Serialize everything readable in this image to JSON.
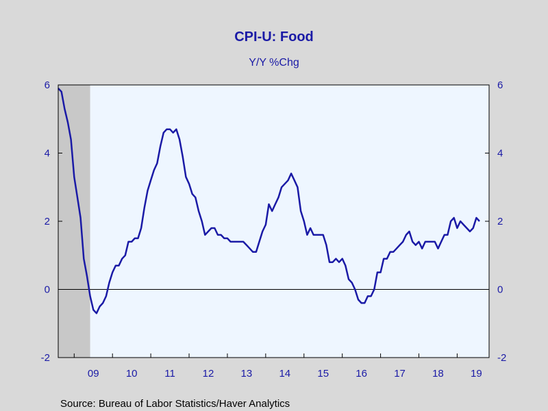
{
  "colors": {
    "background": "#d9d9d9",
    "plot_background": "#eef6ff",
    "recession_shade": "#c8c8c8",
    "series_line": "#1a1aa6",
    "text": "#1a1aa6",
    "zero_line": "#000000"
  },
  "chart_data": {
    "type": "line",
    "title": "CPI-U: Food",
    "subtitle": "Y/Y %Chg",
    "source": "Source:  Bureau of Labor Statistics/Haver Analytics",
    "x_tick_labels": [
      "09",
      "10",
      "11",
      "12",
      "13",
      "14",
      "15",
      "16",
      "17",
      "18",
      "19"
    ],
    "x_start": "2008-08",
    "x_range": [
      "2008-08",
      "2019-11"
    ],
    "ylim": [
      -2,
      6
    ],
    "y_ticks": [
      -2,
      0,
      2,
      4,
      6
    ],
    "recession": {
      "start": "2008-08",
      "end": "2009-06"
    },
    "zero_line": true,
    "grid": false,
    "series": [
      {
        "values": [
          5.9,
          5.8,
          5.3,
          4.9,
          4.4,
          3.3,
          2.7,
          2.1,
          0.9,
          0.4,
          -0.2,
          -0.6,
          -0.7,
          -0.5,
          -0.4,
          -0.2,
          0.2,
          0.5,
          0.7,
          0.7,
          0.9,
          1.0,
          1.4,
          1.4,
          1.5,
          1.5,
          1.8,
          2.4,
          2.9,
          3.2,
          3.5,
          3.7,
          4.2,
          4.6,
          4.7,
          4.7,
          4.6,
          4.7,
          4.4,
          3.9,
          3.3,
          3.1,
          2.8,
          2.7,
          2.3,
          2.0,
          1.6,
          1.7,
          1.8,
          1.8,
          1.6,
          1.6,
          1.5,
          1.5,
          1.4,
          1.4,
          1.4,
          1.4,
          1.4,
          1.3,
          1.2,
          1.1,
          1.1,
          1.4,
          1.7,
          1.9,
          2.5,
          2.3,
          2.5,
          2.7,
          3.0,
          3.1,
          3.2,
          3.4,
          3.2,
          3.0,
          2.3,
          2.0,
          1.6,
          1.8,
          1.6,
          1.6,
          1.6,
          1.6,
          1.3,
          0.8,
          0.8,
          0.9,
          0.8,
          0.9,
          0.7,
          0.3,
          0.2,
          0.0,
          -0.3,
          -0.4,
          -0.4,
          -0.2,
          -0.2,
          0.0,
          0.5,
          0.5,
          0.9,
          0.9,
          1.1,
          1.1,
          1.2,
          1.3,
          1.4,
          1.6,
          1.7,
          1.4,
          1.3,
          1.4,
          1.2,
          1.4,
          1.4,
          1.4,
          1.4,
          1.2,
          1.4,
          1.6,
          1.6,
          2.0,
          2.1,
          1.8,
          2.0,
          1.9,
          1.8,
          1.7,
          1.8,
          2.1,
          2.0
        ]
      }
    ]
  }
}
